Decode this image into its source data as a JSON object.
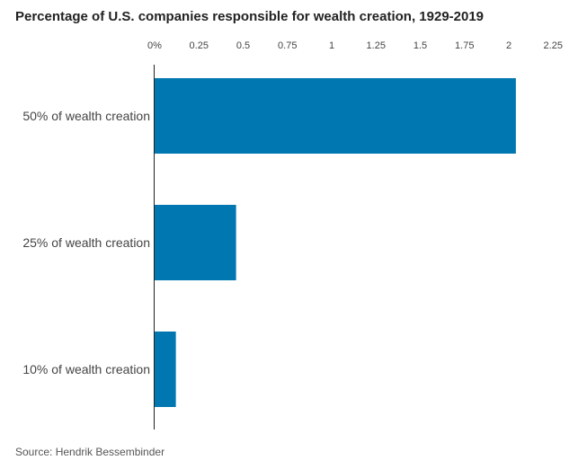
{
  "chart_data": {
    "type": "bar",
    "orientation": "horizontal",
    "title": "Percentage of U.S. companies responsible for wealth creation, 1929-2019",
    "source": "Source: Hendrik Bessembinder",
    "categories": [
      "50% of wealth creation",
      "25% of wealth creation",
      "10% of wealth creation"
    ],
    "values": [
      2.04,
      0.46,
      0.12
    ],
    "xlim": [
      0,
      2.25
    ],
    "ticks": [
      {
        "value": 0,
        "label": "0%"
      },
      {
        "value": 0.25,
        "label": "0.25"
      },
      {
        "value": 0.5,
        "label": "0.5"
      },
      {
        "value": 0.75,
        "label": "0.75"
      },
      {
        "value": 1,
        "label": "1"
      },
      {
        "value": 1.25,
        "label": "1.25"
      },
      {
        "value": 1.5,
        "label": "1.5"
      },
      {
        "value": 1.75,
        "label": "1.75"
      },
      {
        "value": 2,
        "label": "2"
      },
      {
        "value": 2.25,
        "label": "2.25"
      }
    ],
    "xaxis_position": "top",
    "grid": false,
    "bar_color": "#0077b0"
  }
}
